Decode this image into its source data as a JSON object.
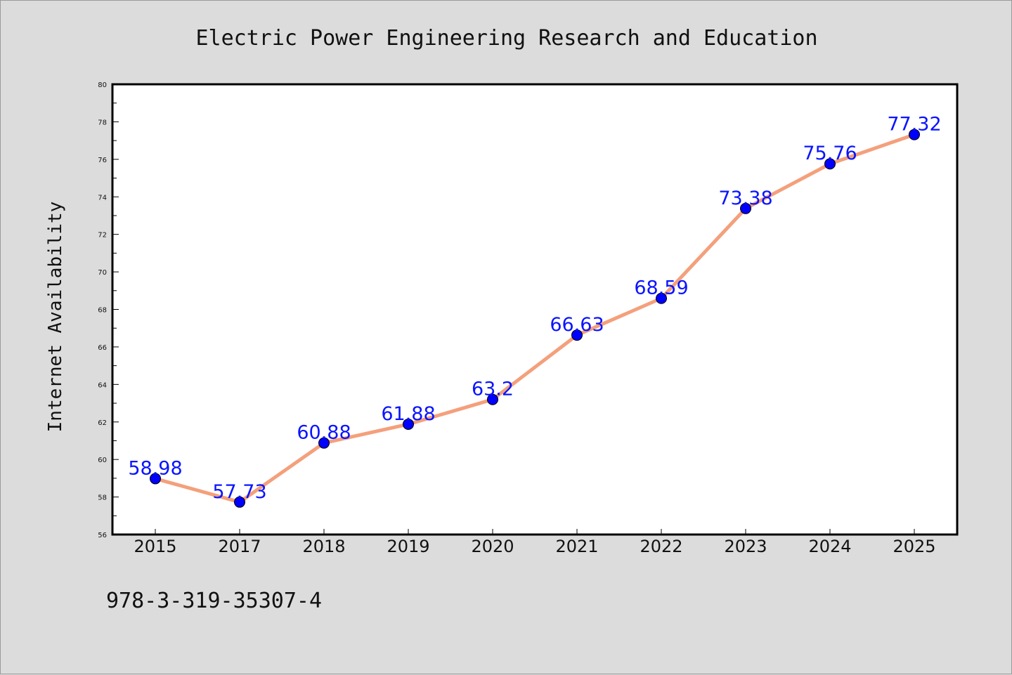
{
  "chart_data": {
    "type": "line",
    "title": "Electric Power Engineering Research and Education",
    "xlabel": "",
    "ylabel": "Internet Availability",
    "categories": [
      "2015",
      "2017",
      "2018",
      "2019",
      "2020",
      "2021",
      "2022",
      "2023",
      "2024",
      "2025"
    ],
    "values": [
      58.98,
      57.73,
      60.88,
      61.88,
      63.2,
      66.63,
      68.59,
      73.38,
      75.76,
      77.32
    ],
    "data_labels": [
      "58.98",
      "57.73",
      "60.88",
      "61.88",
      "63.2",
      "66.63",
      "68.59",
      "73.38",
      "75.76",
      "77.32"
    ],
    "ylim": [
      56,
      80
    ],
    "yticks": [
      56,
      58,
      60,
      62,
      64,
      66,
      68,
      70,
      72,
      74,
      76,
      78,
      80
    ],
    "grid": false,
    "legend": "none",
    "colors": {
      "line": "#f4a07c",
      "marker": "#0000ff",
      "data_label": "#0a14ff",
      "background": "#dcdcdc",
      "plot_background": "#ffffff"
    }
  },
  "footer": {
    "text": "978-3-319-35307-4"
  }
}
